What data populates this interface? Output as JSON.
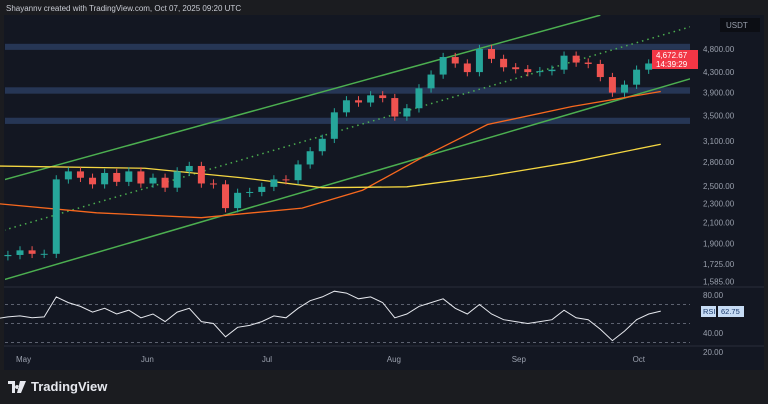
{
  "header": {
    "attribution": "Shayannv created with TradingView.com, Oct 07, 2025 09:20 UTC"
  },
  "footer": {
    "brand": "TradingView"
  },
  "chart_data": {
    "type": "candlestick",
    "currency": "USDT",
    "scale": "log",
    "ylim": [
      1585,
      4800
    ],
    "price_ticks": [
      4800,
      4300,
      3900,
      3500,
      3100,
      2800,
      2500,
      2300,
      2100,
      1900,
      1725,
      1585
    ],
    "price_tick_labels": [
      "4,800.00",
      "4,300.00",
      "3,900.00",
      "3,500.00",
      "3,100.00",
      "2,800.00",
      "2,500.00",
      "2,300.00",
      "2,100.00",
      "1,900.00",
      "1,725.00",
      "1,585.00"
    ],
    "x_tick_labels": [
      {
        "date": "2025-05-01",
        "label": "May"
      },
      {
        "date": "2025-06-01",
        "label": "Jun"
      },
      {
        "date": "2025-07-01",
        "label": "Jul"
      },
      {
        "date": "2025-08-01",
        "label": "Aug"
      },
      {
        "date": "2025-09-01",
        "label": "Sep"
      },
      {
        "date": "2025-10-01",
        "label": "Oct"
      }
    ],
    "last_price": {
      "value": "4,672.67",
      "countdown": "14:39:29",
      "color": "#f23645"
    },
    "dates": [
      "2025-04-25",
      "2025-04-28",
      "2025-05-01",
      "2025-05-04",
      "2025-05-07",
      "2025-05-10",
      "2025-05-13",
      "2025-05-16",
      "2025-05-19",
      "2025-05-22",
      "2025-05-25",
      "2025-05-28",
      "2025-05-31",
      "2025-06-03",
      "2025-06-06",
      "2025-06-09",
      "2025-06-12",
      "2025-06-15",
      "2025-06-18",
      "2025-06-21",
      "2025-06-24",
      "2025-06-27",
      "2025-06-30",
      "2025-07-03",
      "2025-07-06",
      "2025-07-09",
      "2025-07-12",
      "2025-07-15",
      "2025-07-18",
      "2025-07-21",
      "2025-07-24",
      "2025-07-27",
      "2025-07-30",
      "2025-08-02",
      "2025-08-05",
      "2025-08-08",
      "2025-08-11",
      "2025-08-14",
      "2025-08-17",
      "2025-08-20",
      "2025-08-23",
      "2025-08-26",
      "2025-08-29",
      "2025-09-01",
      "2025-09-04",
      "2025-09-07",
      "2025-09-10",
      "2025-09-13",
      "2025-09-16",
      "2025-09-19",
      "2025-09-22",
      "2025-09-25",
      "2025-09-28",
      "2025-10-01",
      "2025-10-04",
      "2025-10-07"
    ],
    "close": [
      1790,
      1800,
      1840,
      1810,
      1810,
      2580,
      2680,
      2600,
      2520,
      2660,
      2550,
      2680,
      2530,
      2600,
      2480,
      2680,
      2750,
      2530,
      2520,
      2250,
      2420,
      2430,
      2490,
      2580,
      2570,
      2770,
      2950,
      3130,
      3550,
      3760,
      3720,
      3850,
      3800,
      3480,
      3620,
      3980,
      4250,
      4620,
      4480,
      4300,
      4800,
      4580,
      4400,
      4360,
      4300,
      4320,
      4350,
      4650,
      4500,
      4470,
      4200,
      3900,
      4050,
      4350,
      4480,
      4673
    ],
    "rsi": {
      "label": "RSI",
      "value": "62.75",
      "ticks": [
        "80.00",
        "40.00",
        "20.00"
      ],
      "levels": [
        70,
        50,
        30
      ],
      "values": [
        55,
        57,
        58,
        56,
        57,
        78,
        72,
        68,
        62,
        66,
        60,
        64,
        56,
        60,
        52,
        62,
        66,
        52,
        50,
        36,
        46,
        48,
        52,
        58,
        56,
        66,
        74,
        78,
        84,
        82,
        76,
        78,
        72,
        56,
        60,
        68,
        72,
        76,
        66,
        60,
        70,
        60,
        54,
        52,
        50,
        52,
        54,
        64,
        56,
        54,
        44,
        32,
        42,
        54,
        60,
        63
      ]
    },
    "ma_orange": {
      "color": "#f7681e",
      "points": [
        [
          "2025-04-25",
          2300
        ],
        [
          "2025-05-20",
          2200
        ],
        [
          "2025-06-15",
          2150
        ],
        [
          "2025-07-10",
          2250
        ],
        [
          "2025-07-25",
          2450
        ],
        [
          "2025-08-10",
          2900
        ],
        [
          "2025-08-25",
          3350
        ],
        [
          "2025-09-15",
          3650
        ],
        [
          "2025-10-07",
          3920
        ]
      ]
    },
    "ma_yellow": {
      "color": "#f5d742",
      "points": [
        [
          "2025-04-25",
          2750
        ],
        [
          "2025-06-01",
          2720
        ],
        [
          "2025-06-25",
          2600
        ],
        [
          "2025-07-15",
          2480
        ],
        [
          "2025-08-05",
          2490
        ],
        [
          "2025-08-25",
          2620
        ],
        [
          "2025-09-15",
          2800
        ],
        [
          "2025-10-07",
          3050
        ]
      ]
    },
    "channel": {
      "color": "#4caf50",
      "upper": [
        [
          "2025-04-27",
          2575
        ],
        [
          "2025-09-22",
          5640
        ]
      ],
      "lower": [
        [
          "2025-04-27",
          1600
        ],
        [
          "2025-10-20",
          4300
        ]
      ],
      "middle": [
        [
          "2025-04-27",
          2025
        ],
        [
          "2025-10-20",
          5510
        ]
      ]
    },
    "zones": [
      [
        4780,
        4920
      ],
      [
        3880,
        4000
      ],
      [
        3360,
        3460
      ]
    ],
    "colors": {
      "up": "#26a69a",
      "down": "#ef5350",
      "zone": "#2a3c5e"
    }
  }
}
